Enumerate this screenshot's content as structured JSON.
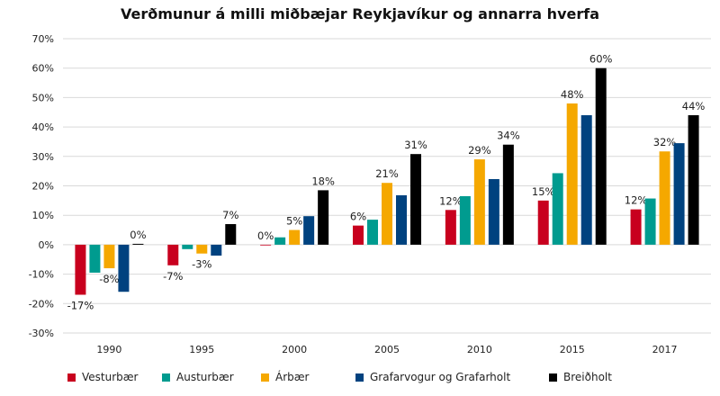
{
  "chart_data": {
    "type": "bar",
    "title": "Verðmunur á milli miðbæjar Reykjavíkur og annarra hverfa",
    "categories": [
      "1990",
      "1995",
      "2000",
      "2005",
      "2010",
      "2015",
      "2017"
    ],
    "ylim": [
      -30,
      70
    ],
    "yticks": [
      -30,
      -20,
      -10,
      0,
      10,
      20,
      30,
      40,
      50,
      60,
      70
    ],
    "ytick_labels": [
      "-30%",
      "-20%",
      "-10%",
      "0%",
      "10%",
      "20%",
      "30%",
      "40%",
      "50%",
      "60%",
      "70%"
    ],
    "grid": true,
    "legend_position": "bottom",
    "series": [
      {
        "name": "Vesturbær",
        "color": "#c8001e",
        "values": [
          -17,
          -7,
          0,
          6.5,
          11.8,
          15,
          12
        ],
        "labels": [
          "-17%",
          "-7%",
          "0%",
          "6%",
          "12%",
          "15%",
          "12%"
        ]
      },
      {
        "name": "Austurbær",
        "color": "#009b8f",
        "values": [
          -9.5,
          -1.5,
          2.5,
          8.5,
          16.5,
          24.3,
          15.7
        ],
        "labels": [
          null,
          null,
          null,
          null,
          null,
          null,
          null
        ]
      },
      {
        "name": "Árbær",
        "color": "#f5a800",
        "values": [
          -8,
          -3,
          5,
          21,
          29,
          48,
          31.7
        ],
        "labels": [
          "-8%",
          "-3%",
          "5%",
          "21%",
          "29%",
          "48%",
          "32%"
        ]
      },
      {
        "name": "Grafarvogur og Grafarholt",
        "color": "#00427f",
        "values": [
          -16,
          -3.7,
          9.7,
          16.8,
          22.3,
          44,
          34.5
        ],
        "labels": [
          null,
          null,
          null,
          null,
          null,
          null,
          null
        ]
      },
      {
        "name": "Breiðholt",
        "color": "#000000",
        "values": [
          0.3,
          7,
          18.5,
          30.8,
          34,
          60,
          44
        ],
        "labels": [
          "0%",
          "7%",
          "18%",
          "31%",
          "34%",
          "60%",
          "44%"
        ]
      }
    ]
  }
}
